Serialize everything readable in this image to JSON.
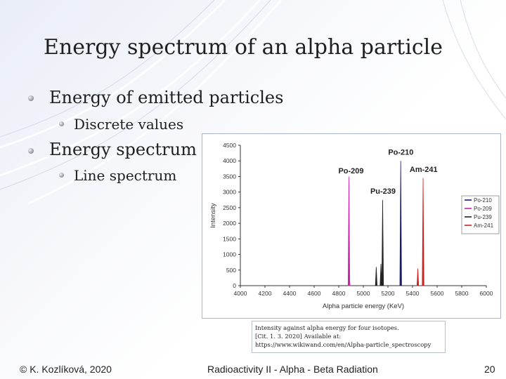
{
  "slide": {
    "title": "Energy spectrum of an alpha particle",
    "bullets": [
      {
        "text": "Energy of emitted particles",
        "sub": [
          "Discrete values"
        ]
      },
      {
        "text": "Energy spectrum",
        "sub": [
          "Line spectrum"
        ]
      }
    ],
    "caption": {
      "line1": "Intensity against alpha energy for four isotopes.",
      "line2": "[Cit. 1. 3. 2020] Available at:",
      "line3": "https://www.wikiwand.com/en/Alpha-particle_spectroscopy"
    },
    "footer": {
      "author": "© K. Kozlíková, 2020",
      "course": "Radioactivity II - Alpha - Beta Radiation",
      "page": "20"
    }
  },
  "chart_data": {
    "type": "line",
    "xlabel": "Alpha particle energy (KeV)",
    "ylabel": "Intensity",
    "xlim": [
      4000,
      6000
    ],
    "ylim": [
      0,
      4500
    ],
    "x_ticks": [
      4000,
      4200,
      4400,
      4600,
      4800,
      5000,
      5200,
      5400,
      5600,
      5800,
      6000
    ],
    "y_ticks": [
      0,
      500,
      1000,
      1500,
      2000,
      2500,
      3000,
      3500,
      4000,
      4500
    ],
    "legend_position": "right",
    "series": [
      {
        "name": "Po-210",
        "color": "#1a1a6e",
        "peaks": [
          {
            "x": 5304,
            "y": 4000
          }
        ]
      },
      {
        "name": "Po-209",
        "color": "#cc22aa",
        "peaks": [
          {
            "x": 4883,
            "y": 3500
          },
          {
            "x": 4885,
            "y": 300
          }
        ]
      },
      {
        "name": "Pu-239",
        "color": "#222222",
        "peaks": [
          {
            "x": 5105,
            "y": 600
          },
          {
            "x": 5143,
            "y": 700
          },
          {
            "x": 5157,
            "y": 2750
          }
        ]
      },
      {
        "name": "Am-241",
        "color": "#cc2222",
        "peaks": [
          {
            "x": 5443,
            "y": 550
          },
          {
            "x": 5486,
            "y": 3450
          }
        ]
      }
    ],
    "annotations": [
      {
        "text": "Po-210",
        "x": 5305,
        "y": 4200
      },
      {
        "text": "Po-209",
        "x": 4900,
        "y": 3600
      },
      {
        "text": "Pu-239",
        "x": 5160,
        "y": 2950
      },
      {
        "text": "Am-241",
        "x": 5490,
        "y": 3650
      }
    ]
  }
}
